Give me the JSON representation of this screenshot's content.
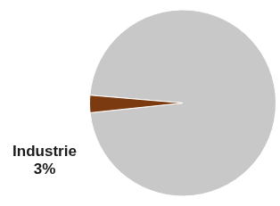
{
  "chart_data": {
    "type": "pie",
    "values": [
      97,
      3
    ],
    "colors": [
      "#C8C8C8",
      "#7B3A10"
    ],
    "annotations": [
      {
        "text": [
          "Industrie",
          "3%"
        ],
        "color": "#1a1a1a"
      }
    ]
  }
}
